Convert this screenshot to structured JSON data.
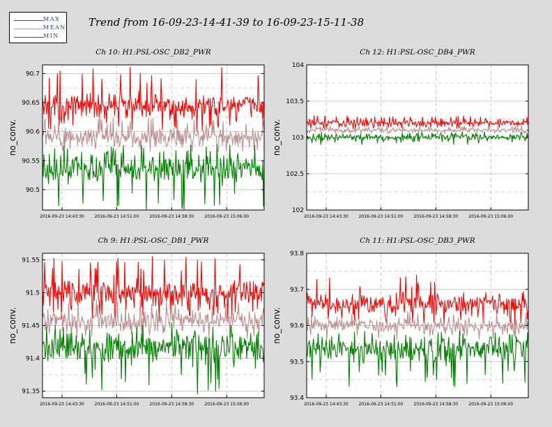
{
  "title": "Trend from 16-09-23-14-41-39 to 16-09-23-15-11-38",
  "legend": [
    {
      "label": "MAX",
      "color": "#ff0000"
    },
    {
      "label": "MEAN",
      "color": "#bc8f8f"
    },
    {
      "label": "MIN",
      "color": "#008000"
    }
  ],
  "chart_data": [
    {
      "type": "line",
      "title": "Ch 10: H1:PSL-OSC_DB2_PWR",
      "ylabel": "no_conv.",
      "ylim": [
        90.465,
        90.715
      ],
      "yticks": [
        90.5,
        90.55,
        90.6,
        90.65,
        90.7
      ],
      "ytick_labels": [
        "90.5",
        "90.55",
        "90.6",
        "90.65",
        "90.7"
      ],
      "xticks": [
        "2016-09-23 14:43:30",
        "2016-09-23 14:51:00",
        "2016-09-23 14:58:30",
        "2016-09-23 15:06:00"
      ],
      "grid": true,
      "series": [
        {
          "name": "MAX",
          "center": 90.645,
          "spread": 0.018,
          "spike_max": 90.715,
          "spike_min": 90.6,
          "color": "#ff0000"
        },
        {
          "name": "MEAN",
          "center": 90.59,
          "spread": 0.012,
          "spike_max": 90.625,
          "spike_min": 90.565,
          "color": "#bc8f8f"
        },
        {
          "name": "MIN",
          "center": 90.535,
          "spread": 0.02,
          "spike_max": 90.58,
          "spike_min": 90.465,
          "color": "#008000"
        }
      ]
    },
    {
      "type": "line",
      "title": "Ch 12: H1:PSL-OSC_DB4_PWR",
      "ylabel": "no_conv.",
      "ylim": [
        102,
        104
      ],
      "yticks": [
        102,
        102.5,
        103,
        103.5,
        104
      ],
      "ytick_labels": [
        "102",
        "102.5",
        "103",
        "103.5",
        "104"
      ],
      "xticks": [
        "2016-09-23 14:43:30",
        "2016-09-23 14:51:00",
        "2016-09-23 14:58:30",
        "2016-09-23 15:06:00"
      ],
      "grid": true,
      "series": [
        {
          "name": "MAX",
          "center": 103.2,
          "spread": 0.04,
          "spike_max": 103.3,
          "spike_min": 103.12,
          "color": "#ff0000"
        },
        {
          "name": "MEAN",
          "center": 103.1,
          "spread": 0.025,
          "spike_max": 103.16,
          "spike_min": 103.05,
          "color": "#bc8f8f"
        },
        {
          "name": "MIN",
          "center": 103.0,
          "spread": 0.04,
          "spike_max": 103.08,
          "spike_min": 102.9,
          "color": "#008000"
        }
      ]
    },
    {
      "type": "line",
      "title": "Ch 9: H1:PSL-OSC_DB1_PWR",
      "ylabel": "no_conv.",
      "ylim": [
        91.34,
        91.56
      ],
      "yticks": [
        91.35,
        91.4,
        91.45,
        91.5,
        91.55
      ],
      "ytick_labels": [
        "91.35",
        "91.4",
        "91.45",
        "91.5",
        "91.55"
      ],
      "xticks": [
        "2016-09-23 14:43:30",
        "2016-09-23 14:51:00",
        "2016-09-23 14:58:30",
        "2016-09-23 15:06:00"
      ],
      "grid": true,
      "series": [
        {
          "name": "MAX",
          "center": 91.5,
          "spread": 0.018,
          "spike_max": 91.557,
          "spike_min": 91.46,
          "color": "#ff0000"
        },
        {
          "name": "MEAN",
          "center": 91.458,
          "spread": 0.012,
          "spike_max": 91.49,
          "spike_min": 91.43,
          "color": "#bc8f8f"
        },
        {
          "name": "MIN",
          "center": 91.415,
          "spread": 0.02,
          "spike_max": 91.455,
          "spike_min": 91.345,
          "color": "#008000"
        }
      ]
    },
    {
      "type": "line",
      "title": "Ch 11: H1:PSL-OSC_DB3_PWR",
      "ylabel": "no_conv.",
      "ylim": [
        93.4,
        93.8
      ],
      "yticks": [
        93.4,
        93.5,
        93.6,
        93.7,
        93.8
      ],
      "ytick_labels": [
        "93.4",
        "93.5",
        "93.6",
        "93.7",
        "93.8"
      ],
      "xticks": [
        "2016-09-23 14:43:30",
        "2016-09-23 14:51:00",
        "2016-09-23 14:58:30",
        "2016-09-23 15:06:00"
      ],
      "grid": true,
      "series": [
        {
          "name": "MAX",
          "center": 93.66,
          "spread": 0.025,
          "spike_max": 93.745,
          "spike_min": 93.6,
          "color": "#ff0000"
        },
        {
          "name": "MEAN",
          "center": 93.6,
          "spread": 0.015,
          "spike_max": 93.64,
          "spike_min": 93.56,
          "color": "#bc8f8f"
        },
        {
          "name": "MIN",
          "center": 93.535,
          "spread": 0.03,
          "spike_max": 93.59,
          "spike_min": 93.43,
          "color": "#008000"
        }
      ]
    }
  ]
}
